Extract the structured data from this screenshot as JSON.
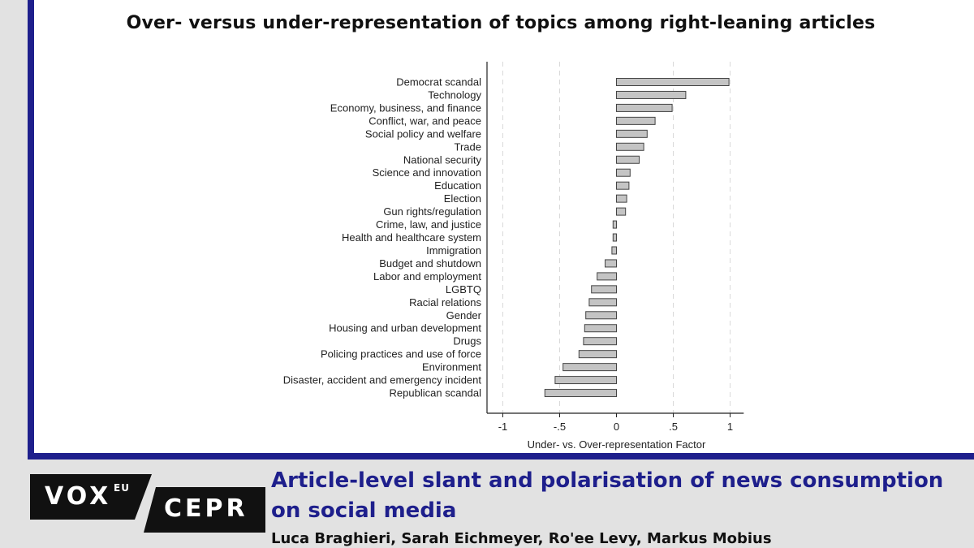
{
  "page": {
    "article_title": "Article-level slant and polarisation of news consumption on social media",
    "authors": "Luca Braghieri, Sarah Eichmeyer, Ro'ee Levy, Markus Mobius",
    "logo": {
      "vox": "VOX",
      "eu": "EU",
      "cepr": "CEPR"
    },
    "colors": {
      "accent": "#1e1f8c",
      "bar_fill": "#c4c4c4",
      "bar_stroke": "#444444"
    }
  },
  "chart_data": {
    "type": "bar",
    "orientation": "horizontal",
    "title": "Over- versus under-representation of topics among right-leaning articles",
    "xlabel": "Under- vs. Over-representation Factor",
    "ylabel": "",
    "xlim": [
      -1.1,
      1.12
    ],
    "xticks": [
      -1,
      -0.5,
      0,
      0.5,
      1
    ],
    "xtick_labels": [
      "-1",
      "-.5",
      "0",
      ".5",
      "1"
    ],
    "grid": "vertical dashed",
    "categories": [
      "Democrat scandal",
      "Technology",
      "Economy, business, and finance",
      "Conflict, war, and peace",
      "Social policy and welfare",
      "Trade",
      "National security",
      "Science and innovation",
      "Education",
      "Election",
      "Gun rights/regulation",
      "Crime, law, and justice",
      "Health and healthcare system",
      "Immigration",
      "Budget and shutdown",
      "Labor and employment",
      "LGBTQ",
      "Racial relations",
      "Gender",
      "Housing and urban development",
      "Drugs",
      "Policing practices and use of force",
      "Environment",
      "Disaster, accident and emergency incident",
      "Republican scandal"
    ],
    "values": [
      0.99,
      0.61,
      0.49,
      0.34,
      0.27,
      0.24,
      0.2,
      0.12,
      0.11,
      0.09,
      0.08,
      -0.03,
      -0.03,
      -0.04,
      -0.1,
      -0.17,
      -0.22,
      -0.24,
      -0.27,
      -0.28,
      -0.29,
      -0.33,
      -0.47,
      -0.54,
      -0.63
    ]
  }
}
